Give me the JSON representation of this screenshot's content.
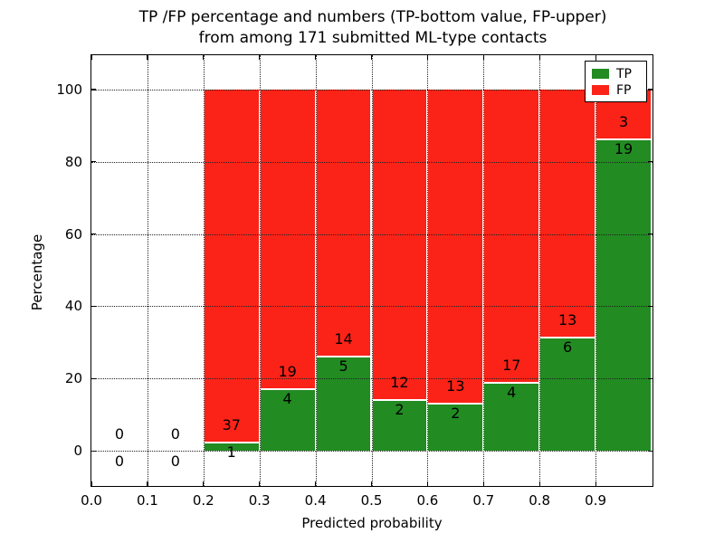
{
  "title": {
    "line1": "TP /FP percentage and numbers (TP-bottom value, FP-upper)",
    "line2": "from among 171 submitted ML-type contacts"
  },
  "chart_data": {
    "type": "bar",
    "stacked": true,
    "title": "TP /FP percentage and numbers (TP-bottom value, FP-upper) from among 171 submitted ML-type contacts",
    "xlabel": "Predicted probability",
    "ylabel": "Percentage",
    "xlim": [
      0.0,
      1.0
    ],
    "ylim": [
      -9.5,
      109.5
    ],
    "grid": true,
    "total_contacts": 171,
    "x_tick_values": [
      0.0,
      0.1,
      0.2,
      0.3,
      0.4,
      0.5,
      0.6,
      0.7,
      0.8,
      0.9
    ],
    "x_tick_labels": [
      "0.0",
      "0.1",
      "0.2",
      "0.3",
      "0.4",
      "0.5",
      "0.6",
      "0.7",
      "0.8",
      "0.9"
    ],
    "y_tick_values": [
      0,
      20,
      40,
      60,
      80,
      100
    ],
    "y_tick_labels": [
      "0",
      "20",
      "40",
      "60",
      "80",
      "100"
    ],
    "colors": {
      "tp": "#228b22",
      "fp": "#fb2318"
    },
    "legend": {
      "position": "upper right",
      "entries": [
        {
          "label": "TP",
          "color": "#228b22"
        },
        {
          "label": "FP",
          "color": "#fb2318"
        }
      ]
    },
    "bins": [
      {
        "range": [
          0.0,
          0.1
        ],
        "tp": 0,
        "fp": 0,
        "tp_pct": 0,
        "fp_pct": 0
      },
      {
        "range": [
          0.1,
          0.2
        ],
        "tp": 0,
        "fp": 0,
        "tp_pct": 0,
        "fp_pct": 0
      },
      {
        "range": [
          0.2,
          0.3
        ],
        "tp": 1,
        "fp": 37,
        "tp_pct": 2.63,
        "fp_pct": 97.37
      },
      {
        "range": [
          0.3,
          0.4
        ],
        "tp": 4,
        "fp": 19,
        "tp_pct": 17.39,
        "fp_pct": 82.61
      },
      {
        "range": [
          0.4,
          0.5
        ],
        "tp": 5,
        "fp": 14,
        "tp_pct": 26.32,
        "fp_pct": 73.68
      },
      {
        "range": [
          0.5,
          0.6
        ],
        "tp": 2,
        "fp": 12,
        "tp_pct": 14.29,
        "fp_pct": 85.71
      },
      {
        "range": [
          0.6,
          0.7
        ],
        "tp": 2,
        "fp": 13,
        "tp_pct": 13.33,
        "fp_pct": 86.67
      },
      {
        "range": [
          0.7,
          0.8
        ],
        "tp": 4,
        "fp": 17,
        "tp_pct": 19.05,
        "fp_pct": 80.95
      },
      {
        "range": [
          0.8,
          0.9
        ],
        "tp": 6,
        "fp": 13,
        "tp_pct": 31.58,
        "fp_pct": 68.42
      },
      {
        "range": [
          0.9,
          1.0
        ],
        "tp": 19,
        "fp": 3,
        "tp_pct": 86.36,
        "fp_pct": 13.64
      }
    ]
  }
}
